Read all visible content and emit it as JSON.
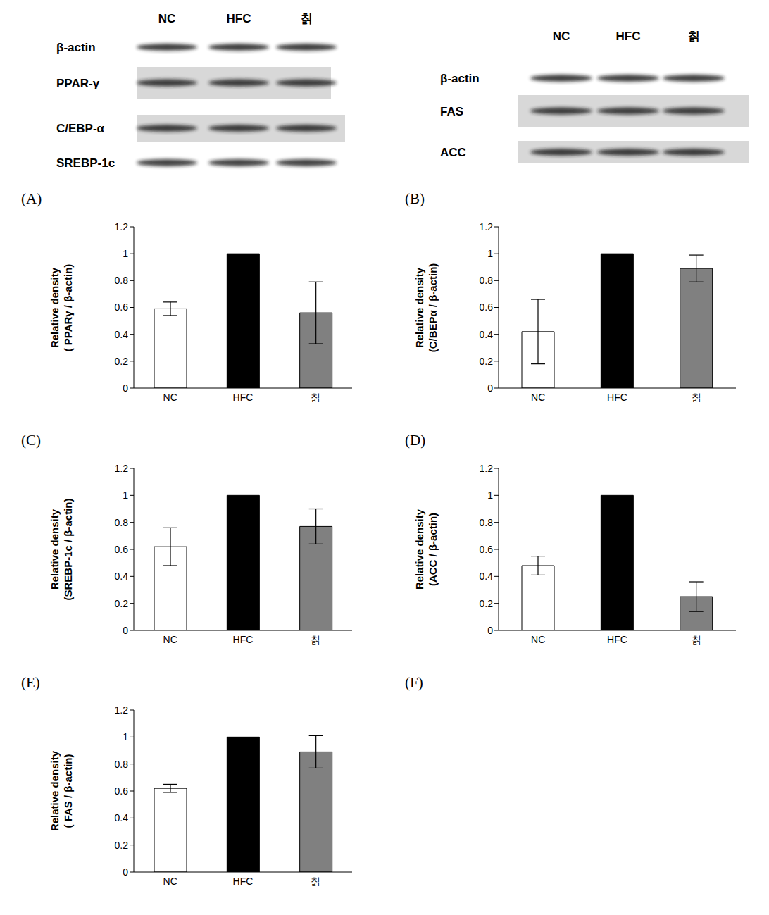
{
  "blots": [
    {
      "lanes": [
        "NC",
        "HFC",
        "칡"
      ],
      "proteins": [
        "β-actin",
        "PPAR-γ",
        "C/EBP-α",
        "SREBP-1c"
      ]
    },
    {
      "lanes": [
        "NC",
        "HFC",
        "칡"
      ],
      "proteins": [
        "β-actin",
        "FAS",
        "ACC"
      ]
    }
  ],
  "panel_labels": [
    "(A)",
    "(B)",
    "(C)",
    "(D)",
    "(E)",
    "(F)"
  ],
  "chart_data": [
    {
      "type": "bar",
      "y_label": [
        "Relative density",
        "( PPARγ / β-actin)"
      ],
      "categories": [
        "NC",
        "HFC",
        "칡"
      ],
      "values": [
        0.59,
        1,
        0.56
      ],
      "errors": [
        0.05,
        null,
        0.23
      ],
      "colors": [
        "#ffffff",
        "#000000",
        "#808080"
      ],
      "ylim": [
        0,
        1.2
      ],
      "yticks": [
        0,
        0.2,
        0.4,
        0.6,
        0.8,
        1,
        1.2
      ],
      "grid": false
    },
    {
      "type": "bar",
      "y_label": [
        "Relative density",
        "(C/BEPα / β-actin)"
      ],
      "categories": [
        "NC",
        "HFC",
        "칡"
      ],
      "values": [
        0.42,
        1,
        0.89
      ],
      "errors": [
        0.24,
        null,
        0.1
      ],
      "colors": [
        "#ffffff",
        "#000000",
        "#808080"
      ],
      "ylim": [
        0,
        1.2
      ],
      "yticks": [
        0,
        0.2,
        0.4,
        0.6,
        0.8,
        1,
        1.2
      ],
      "grid": false
    },
    {
      "type": "bar",
      "y_label": [
        "Relative density",
        "(SREBP-1c / β-actin)"
      ],
      "categories": [
        "NC",
        "HFC",
        "칡"
      ],
      "values": [
        0.62,
        1,
        0.77
      ],
      "errors": [
        0.14,
        null,
        0.13
      ],
      "colors": [
        "#ffffff",
        "#000000",
        "#808080"
      ],
      "ylim": [
        0,
        1.2
      ],
      "yticks": [
        0,
        0.2,
        0.4,
        0.6,
        0.8,
        1,
        1.2
      ],
      "grid": false
    },
    {
      "type": "bar",
      "y_label": [
        "Relative density",
        "(ACC / β-actin)"
      ],
      "categories": [
        "NC",
        "HFC",
        "칡"
      ],
      "values": [
        0.48,
        1,
        0.25
      ],
      "errors": [
        0.07,
        null,
        0.11
      ],
      "colors": [
        "#ffffff",
        "#000000",
        "#808080"
      ],
      "ylim": [
        0,
        1.2
      ],
      "yticks": [
        0,
        0.2,
        0.4,
        0.6,
        0.8,
        1,
        1.2
      ],
      "grid": false
    },
    {
      "type": "bar",
      "y_label": [
        "Relative density",
        "( FAS / β-actin)"
      ],
      "categories": [
        "NC",
        "HFC",
        "칡"
      ],
      "values": [
        0.62,
        1,
        0.89
      ],
      "errors": [
        0.03,
        null,
        0.12
      ],
      "colors": [
        "#ffffff",
        "#000000",
        "#808080"
      ],
      "ylim": [
        0,
        1.2
      ],
      "yticks": [
        0,
        0.2,
        0.4,
        0.6,
        0.8,
        1,
        1.2
      ],
      "grid": false
    }
  ]
}
